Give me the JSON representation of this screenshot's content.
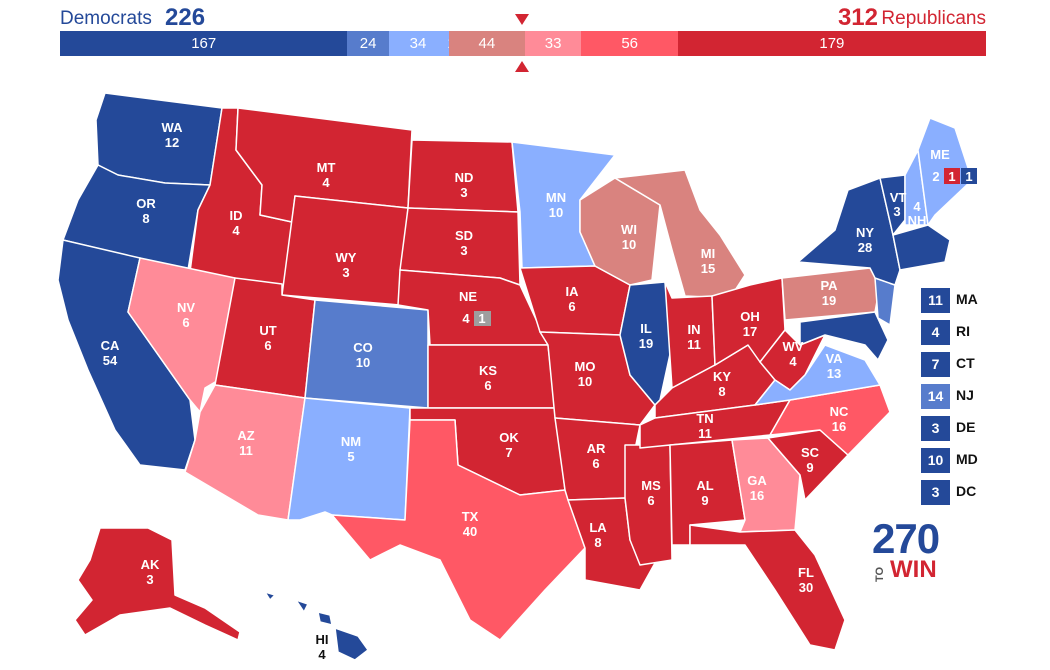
{
  "header": {
    "dem_label": "Democrats",
    "dem_total": "226",
    "rep_total": "312",
    "rep_label": "Republicans"
  },
  "colors": {
    "safe_dem": "#244999",
    "likely_dem": "#577ccc",
    "lean_dem": "#8aafff",
    "tossup": "#d9837f",
    "lean_rep": "#ff8b98",
    "likely_rep": "#ff5865",
    "safe_rep": "#d22532",
    "uncolored": "#9e9e9e"
  },
  "bar": {
    "segments": [
      {
        "label": "167",
        "value": 167,
        "color": "#244999"
      },
      {
        "label": "24",
        "value": 24,
        "color": "#577ccc"
      },
      {
        "label": "34",
        "value": 34,
        "color": "#8aafff"
      },
      {
        "label": "1",
        "value": 1,
        "color": "#8aafff"
      },
      {
        "label": "44",
        "value": 44,
        "color": "#d9837f"
      },
      {
        "label": "33",
        "value": 33,
        "color": "#ff8b98"
      },
      {
        "label": "56",
        "value": 56,
        "color": "#ff5865"
      },
      {
        "label": "179",
        "value": 179,
        "color": "#d22532"
      }
    ],
    "marker_icon": "triangle-marker-icon"
  },
  "states": {
    "WA": {
      "abbr": "WA",
      "ev": "12"
    },
    "OR": {
      "abbr": "OR",
      "ev": "8"
    },
    "CA": {
      "abbr": "CA",
      "ev": "54"
    },
    "ID": {
      "abbr": "ID",
      "ev": "4"
    },
    "NV": {
      "abbr": "NV",
      "ev": "6"
    },
    "MT": {
      "abbr": "MT",
      "ev": "4"
    },
    "WY": {
      "abbr": "WY",
      "ev": "3"
    },
    "UT": {
      "abbr": "UT",
      "ev": "6"
    },
    "AZ": {
      "abbr": "AZ",
      "ev": "11"
    },
    "CO": {
      "abbr": "CO",
      "ev": "10"
    },
    "NM": {
      "abbr": "NM",
      "ev": "5"
    },
    "ND": {
      "abbr": "ND",
      "ev": "3"
    },
    "SD": {
      "abbr": "SD",
      "ev": "3"
    },
    "NE": {
      "abbr": "NE",
      "ev": "4",
      "district_ev": "1"
    },
    "KS": {
      "abbr": "KS",
      "ev": "6"
    },
    "OK": {
      "abbr": "OK",
      "ev": "7"
    },
    "TX": {
      "abbr": "TX",
      "ev": "40"
    },
    "MN": {
      "abbr": "MN",
      "ev": "10"
    },
    "IA": {
      "abbr": "IA",
      "ev": "6"
    },
    "MO": {
      "abbr": "MO",
      "ev": "10"
    },
    "AR": {
      "abbr": "AR",
      "ev": "6"
    },
    "LA": {
      "abbr": "LA",
      "ev": "8"
    },
    "WI": {
      "abbr": "WI",
      "ev": "10"
    },
    "IL": {
      "abbr": "IL",
      "ev": "19"
    },
    "MS": {
      "abbr": "MS",
      "ev": "6"
    },
    "MI": {
      "abbr": "MI",
      "ev": "15"
    },
    "IN": {
      "abbr": "IN",
      "ev": "11"
    },
    "KY": {
      "abbr": "KY",
      "ev": "8"
    },
    "TN": {
      "abbr": "TN",
      "ev": "11"
    },
    "AL": {
      "abbr": "AL",
      "ev": "9"
    },
    "OH": {
      "abbr": "OH",
      "ev": "17"
    },
    "GA": {
      "abbr": "GA",
      "ev": "16"
    },
    "FL": {
      "abbr": "FL",
      "ev": "30"
    },
    "SC": {
      "abbr": "SC",
      "ev": "9"
    },
    "NC": {
      "abbr": "NC",
      "ev": "16"
    },
    "WV": {
      "abbr": "WV",
      "ev": "4"
    },
    "VA": {
      "abbr": "VA",
      "ev": "13"
    },
    "PA": {
      "abbr": "PA",
      "ev": "19"
    },
    "NY": {
      "abbr": "NY",
      "ev": "28"
    },
    "VT": {
      "abbr": "VT",
      "ev": "3"
    },
    "NH": {
      "abbr": "NH",
      "ev": "4"
    },
    "ME": {
      "abbr": "ME",
      "ev": "2",
      "district_ev_1": "1",
      "district_ev_2": "1"
    },
    "AK": {
      "abbr": "AK",
      "ev": "3"
    },
    "HI": {
      "abbr": "HI",
      "ev": "4"
    }
  },
  "legend": [
    {
      "ev": "11",
      "abbr": "MA",
      "color": "#244999"
    },
    {
      "ev": "4",
      "abbr": "RI",
      "color": "#244999"
    },
    {
      "ev": "7",
      "abbr": "CT",
      "color": "#244999"
    },
    {
      "ev": "14",
      "abbr": "NJ",
      "color": "#577ccc"
    },
    {
      "ev": "3",
      "abbr": "DE",
      "color": "#244999"
    },
    {
      "ev": "10",
      "abbr": "MD",
      "color": "#244999"
    },
    {
      "ev": "3",
      "abbr": "DC",
      "color": "#244999"
    }
  ],
  "logo": {
    "num": "270",
    "to": "TO",
    "win": "WIN"
  }
}
